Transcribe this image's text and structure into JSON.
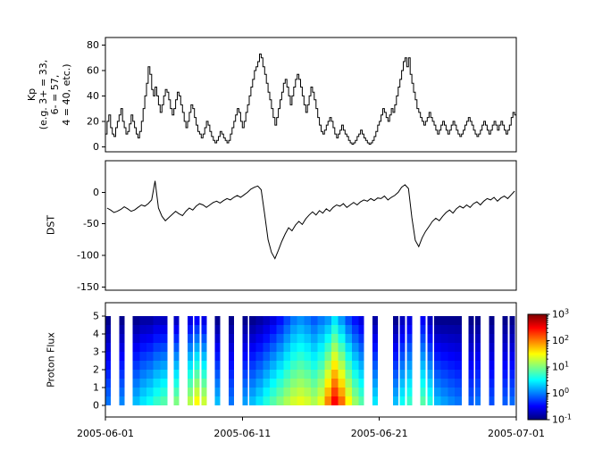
{
  "figure": {
    "background": "#ffffff",
    "x_axis": {
      "tick_labels": [
        "2005-06-01",
        "2005-06-11",
        "2005-06-21",
        "2005-07-01"
      ],
      "tick_days": [
        0,
        10,
        20,
        30
      ],
      "range_days": [
        0,
        30
      ]
    }
  },
  "chart_data": [
    {
      "type": "line",
      "style": "step",
      "name": "kp",
      "ylabel": "Kp\n(e.g. 3+ = 33,\n6- = 57,\n4 = 40, etc.)",
      "ylim": [
        -4,
        86
      ],
      "yticks": [
        0,
        20,
        40,
        60,
        80
      ],
      "x_step_days": 0.125,
      "line_color": "#000000",
      "values": [
        10,
        20,
        25,
        15,
        10,
        8,
        15,
        20,
        25,
        30,
        20,
        15,
        10,
        12,
        18,
        25,
        20,
        15,
        10,
        7,
        12,
        20,
        30,
        40,
        50,
        63,
        57,
        45,
        40,
        47,
        40,
        33,
        27,
        33,
        40,
        45,
        43,
        37,
        30,
        25,
        30,
        37,
        43,
        40,
        33,
        27,
        20,
        15,
        20,
        27,
        33,
        30,
        23,
        17,
        12,
        10,
        7,
        10,
        15,
        20,
        17,
        12,
        8,
        5,
        3,
        5,
        8,
        12,
        10,
        7,
        5,
        3,
        5,
        10,
        15,
        20,
        25,
        30,
        27,
        20,
        15,
        20,
        27,
        33,
        40,
        47,
        53,
        60,
        63,
        67,
        73,
        70,
        63,
        57,
        50,
        43,
        37,
        30,
        23,
        17,
        23,
        30,
        37,
        43,
        50,
        53,
        47,
        40,
        33,
        40,
        47,
        53,
        57,
        53,
        47,
        40,
        33,
        27,
        33,
        40,
        47,
        43,
        37,
        30,
        23,
        17,
        12,
        10,
        13,
        17,
        20,
        23,
        20,
        15,
        10,
        7,
        10,
        13,
        17,
        13,
        10,
        8,
        5,
        3,
        2,
        3,
        5,
        8,
        10,
        13,
        10,
        7,
        5,
        3,
        2,
        3,
        5,
        8,
        12,
        17,
        20,
        25,
        30,
        27,
        23,
        20,
        25,
        30,
        27,
        33,
        40,
        47,
        53,
        60,
        67,
        70,
        63,
        70,
        57,
        50,
        43,
        37,
        30,
        27,
        23,
        20,
        17,
        20,
        23,
        27,
        23,
        20,
        17,
        13,
        10,
        13,
        17,
        20,
        17,
        13,
        10,
        13,
        17,
        20,
        17,
        13,
        10,
        8,
        10,
        13,
        17,
        20,
        23,
        20,
        17,
        13,
        10,
        8,
        10,
        13,
        17,
        20,
        17,
        13,
        10,
        13,
        17,
        20,
        17,
        13,
        17,
        20,
        17,
        13,
        10,
        13,
        17,
        23,
        27,
        25
      ]
    },
    {
      "type": "line",
      "style": "linear",
      "name": "dst",
      "ylabel": "DST",
      "ylim": [
        -155,
        50
      ],
      "yticks": [
        0,
        -50,
        -100,
        -150
      ],
      "x_step_days": 0.25,
      "line_color": "#000000",
      "values": [
        -25,
        -28,
        -32,
        -30,
        -27,
        -23,
        -26,
        -30,
        -28,
        -24,
        -20,
        -22,
        -18,
        -12,
        18,
        -25,
        -38,
        -45,
        -40,
        -35,
        -30,
        -34,
        -37,
        -30,
        -25,
        -28,
        -22,
        -18,
        -20,
        -24,
        -20,
        -16,
        -14,
        -17,
        -13,
        -10,
        -12,
        -8,
        -5,
        -8,
        -4,
        0,
        5,
        8,
        10,
        4,
        -35,
        -75,
        -95,
        -105,
        -92,
        -78,
        -66,
        -56,
        -61,
        -52,
        -46,
        -51,
        -42,
        -36,
        -31,
        -36,
        -29,
        -33,
        -26,
        -30,
        -24,
        -20,
        -22,
        -18,
        -24,
        -20,
        -16,
        -20,
        -15,
        -12,
        -14,
        -10,
        -13,
        -9,
        -10,
        -6,
        -12,
        -8,
        -5,
        0,
        8,
        12,
        6,
        -40,
        -76,
        -86,
        -72,
        -62,
        -54,
        -46,
        -41,
        -45,
        -38,
        -32,
        -28,
        -33,
        -26,
        -22,
        -25,
        -20,
        -24,
        -18,
        -15,
        -20,
        -14,
        -10,
        -12,
        -8,
        -14,
        -9,
        -6,
        -10,
        -4,
        2
      ]
    },
    {
      "type": "heatmap",
      "name": "proton-flux",
      "ylabel": "Proton Flux",
      "ylim": [
        -0.65,
        5.75
      ],
      "y_extent": [
        0,
        5
      ],
      "yticks": [
        0,
        1,
        2,
        3,
        4,
        5
      ],
      "colormap": "jet",
      "scale": "log",
      "clim": [
        0.1,
        1000
      ],
      "bin_days": 0.5,
      "rows": 10,
      "colorbar_ticks": [
        {
          "base": "10",
          "exp": "3"
        },
        {
          "base": "10",
          "exp": "2"
        },
        {
          "base": "10",
          "exp": "1"
        },
        {
          "base": "10",
          "exp": "0"
        },
        {
          "base": "10",
          "exp": "-1"
        }
      ],
      "columns": [
        [
          1,
          0.1,
          0
        ],
        null,
        [
          1.2,
          0.1,
          0
        ],
        null,
        [
          2,
          0.1,
          1
        ],
        [
          3,
          0.12,
          1
        ],
        [
          4,
          0.12,
          1
        ],
        [
          6,
          0.15,
          1
        ],
        [
          8,
          0.15,
          1
        ],
        null,
        [
          12,
          0.15,
          0
        ],
        null,
        [
          20,
          0.2,
          0
        ],
        [
          40,
          0.25,
          0
        ],
        [
          25,
          0.2,
          0
        ],
        null,
        [
          2,
          0.1,
          0
        ],
        null,
        [
          1,
          0.1,
          0
        ],
        null,
        [
          1.5,
          0.1,
          0
        ],
        [
          2,
          0.1,
          1
        ],
        [
          3,
          0.12,
          1
        ],
        [
          5,
          0.15,
          1
        ],
        [
          8,
          0.2,
          1
        ],
        [
          12,
          0.3,
          1
        ],
        [
          18,
          0.5,
          1
        ],
        [
          25,
          0.8,
          1
        ],
        [
          30,
          1,
          1
        ],
        [
          25,
          0.8,
          1
        ],
        [
          18,
          0.6,
          1
        ],
        [
          30,
          0.8,
          1
        ],
        [
          120,
          1,
          1
        ],
        [
          400,
          2,
          1
        ],
        [
          150,
          1,
          1
        ],
        [
          40,
          0.5,
          1
        ],
        [
          15,
          0.3,
          1
        ],
        [
          8,
          0.2,
          0
        ],
        null,
        [
          3,
          0.12,
          0
        ],
        null,
        null,
        [
          2,
          0.1,
          0
        ],
        [
          4,
          0.15,
          0
        ],
        [
          6,
          0.2,
          0
        ],
        null,
        [
          8,
          0.25,
          0
        ],
        [
          5,
          0.15,
          0
        ],
        [
          2,
          0.1,
          1
        ],
        [
          1.5,
          0.1,
          1
        ],
        [
          1.2,
          0.1,
          1
        ],
        [
          1,
          0.1,
          1
        ],
        null,
        [
          0.8,
          0.1,
          0
        ],
        [
          1,
          0.1,
          0
        ],
        null,
        [
          0.7,
          0.1,
          0
        ],
        null,
        [
          0.8,
          0.1,
          0
        ],
        [
          0.9,
          0.1,
          0
        ]
      ]
    }
  ]
}
